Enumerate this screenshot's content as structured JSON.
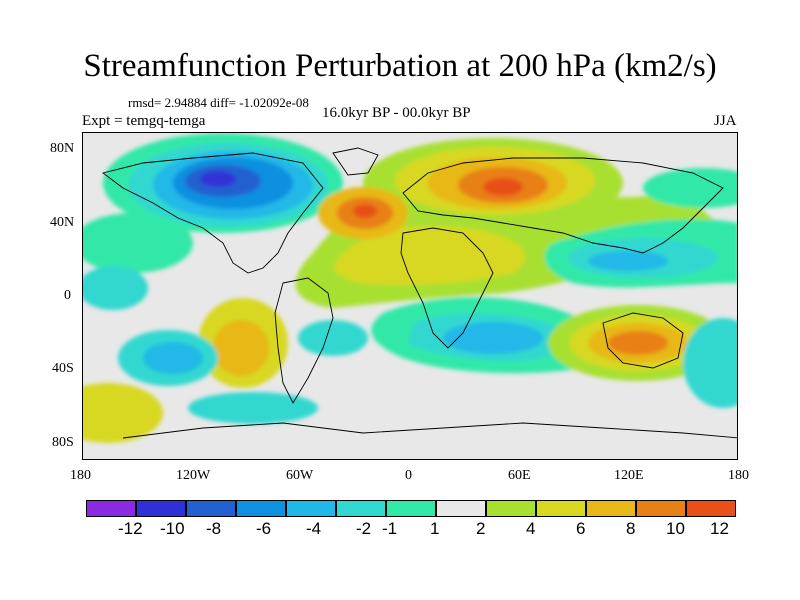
{
  "title": "Streamfunction Perturbation at 200 hPa (km2/s)",
  "stats": "rmsd= 2.94884 diff= -1.02092e-08",
  "experiment": "Expt = temgq-temga",
  "period": "16.0kyr BP - 00.0kyr BP",
  "season": "JJA",
  "lat_labels": [
    "80N",
    "40N",
    "0",
    "40S",
    "80S"
  ],
  "lon_labels": [
    "180",
    "120W",
    "60W",
    "0",
    "60E",
    "120E",
    "180"
  ],
  "colorbar": {
    "labels": [
      "-12",
      "-10",
      "-8",
      "-6",
      "-4",
      "-2",
      "-1",
      "1",
      "2",
      "4",
      "6",
      "8",
      "10",
      "12"
    ],
    "colors": [
      "#8a2be2",
      "#3030d8",
      "#2060d0",
      "#1090e0",
      "#20b8e8",
      "#30d8d0",
      "#30e8a8",
      "#e8e8e8",
      "#a8e030",
      "#d8d820",
      "#e8b818",
      "#e88018",
      "#e85018",
      "#e81818"
    ]
  }
}
